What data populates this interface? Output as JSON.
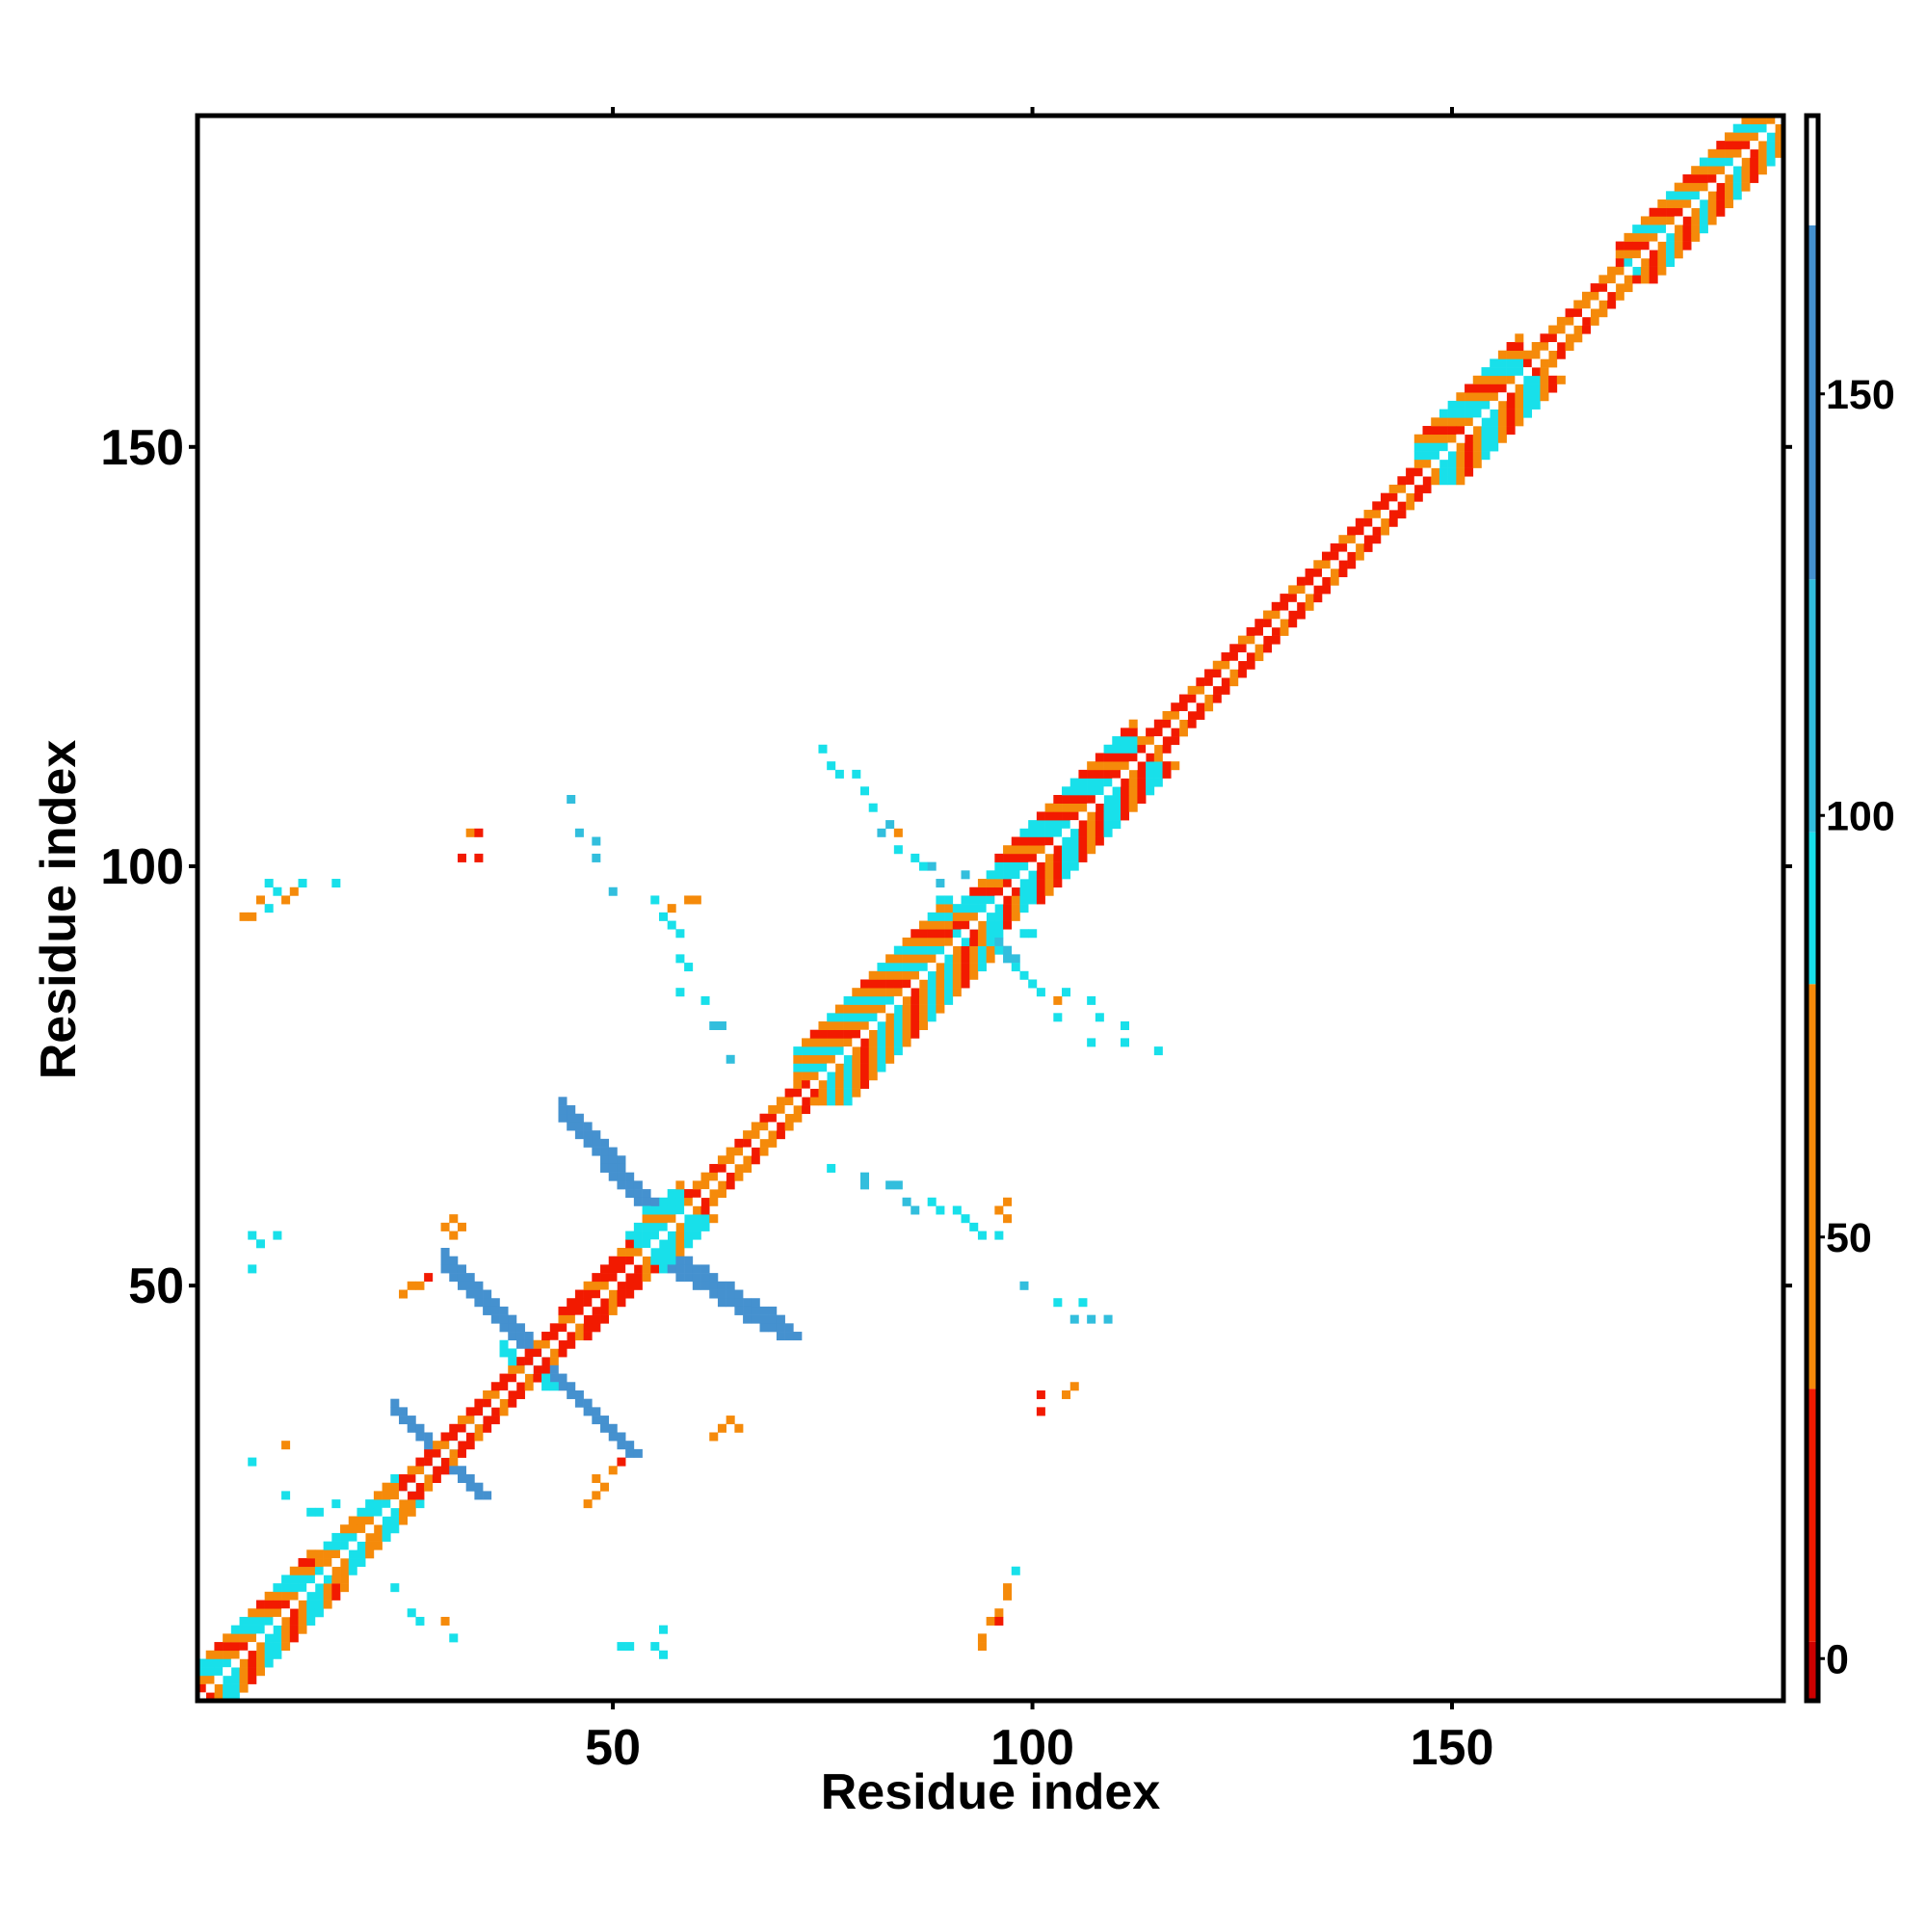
{
  "chart_data": {
    "type": "heatmap",
    "title": "",
    "xlabel": "Residue index",
    "ylabel": "Residue index",
    "xlim": [
      1,
      189
    ],
    "ylim": [
      1,
      189
    ],
    "x_ticks": [
      50,
      100,
      150
    ],
    "y_ticks": [
      50,
      100,
      150
    ],
    "colorbar": {
      "ticks": [
        0,
        50,
        100,
        150
      ],
      "range": [
        -5,
        183
      ],
      "bands": [
        {
          "from": -5,
          "to": 2,
          "color": "#cc0000"
        },
        {
          "from": 2,
          "to": 32,
          "color": "#f21a00"
        },
        {
          "from": 32,
          "to": 80,
          "color": "#f58a0a"
        },
        {
          "from": 80,
          "to": 98,
          "color": "#18e0ea"
        },
        {
          "from": 98,
          "to": 128,
          "color": "#32bedd"
        },
        {
          "from": 128,
          "to": 170,
          "color": "#4591cf"
        },
        {
          "from": 170,
          "to": 183,
          "color": "#ffffff"
        }
      ]
    },
    "colors": {
      "red": "#f21a00",
      "orange": "#f58a0a",
      "cyan": "#18e0ea",
      "lightblue": "#32bedd",
      "steelblue": "#4591cf"
    },
    "diagonal_band": [
      {
        "from": 1,
        "to": 14,
        "halfwidth": 4,
        "pattern": [
          "cyan",
          "orange",
          "red",
          "orange",
          "cyan"
        ]
      },
      {
        "from": 14,
        "to": 24,
        "halfwidth": 3,
        "pattern": [
          "cyan",
          "orange",
          "orange",
          "cyan"
        ]
      },
      {
        "from": 24,
        "to": 44,
        "halfwidth": 2,
        "pattern": [
          "red",
          "orange",
          "red"
        ]
      },
      {
        "from": 44,
        "to": 52,
        "halfwidth": 3,
        "pattern": [
          "red",
          "red",
          "orange",
          "red"
        ]
      },
      {
        "from": 52,
        "to": 58,
        "halfwidth": 4,
        "pattern": [
          "cyan",
          "cyan",
          "orange",
          "cyan"
        ]
      },
      {
        "from": 58,
        "to": 72,
        "halfwidth": 2,
        "pattern": [
          "orange",
          "red",
          "orange"
        ]
      },
      {
        "from": 72,
        "to": 90,
        "halfwidth": 6,
        "pattern": [
          "cyan",
          "orange",
          "red",
          "orange",
          "cyan",
          "orange"
        ]
      },
      {
        "from": 90,
        "to": 96,
        "halfwidth": 4,
        "pattern": [
          "cyan",
          "red",
          "orange",
          "cyan"
        ]
      },
      {
        "from": 96,
        "to": 112,
        "halfwidth": 5,
        "pattern": [
          "cyan",
          "red",
          "orange",
          "red",
          "cyan"
        ]
      },
      {
        "from": 112,
        "to": 146,
        "halfwidth": 2,
        "pattern": [
          "red",
          "orange",
          "red"
        ]
      },
      {
        "from": 146,
        "to": 158,
        "halfwidth": 5,
        "pattern": [
          "cyan",
          "orange",
          "red",
          "orange",
          "cyan"
        ]
      },
      {
        "from": 158,
        "to": 170,
        "halfwidth": 2,
        "pattern": [
          "orange",
          "red",
          "orange"
        ]
      },
      {
        "from": 170,
        "to": 189,
        "halfwidth": 4,
        "pattern": [
          "cyan",
          "orange",
          "red",
          "orange"
        ]
      }
    ],
    "strands": [
      {
        "x": [
          24,
          34
        ],
        "y": [
          35,
          25
        ],
        "width": 2,
        "color": "steelblue"
      },
      {
        "x": [
          24,
          34
        ],
        "y": [
          25,
          35
        ],
        "width": 2,
        "color": "steelblue"
      },
      {
        "x": [
          30,
          40
        ],
        "y": [
          52,
          42
        ],
        "width": 3,
        "color": "steelblue"
      },
      {
        "x": [
          40,
          52
        ],
        "y": [
          42,
          30
        ],
        "width": 2,
        "color": "steelblue"
      },
      {
        "x": [
          44,
          53
        ],
        "y": [
          70,
          60
        ],
        "width": 3,
        "color": "steelblue"
      },
      {
        "x": [
          57,
          70
        ],
        "y": [
          52,
          44
        ],
        "width": 3,
        "color": "steelblue"
      },
      {
        "x": [
          53,
          57
        ],
        "y": [
          60,
          52
        ],
        "width": 3,
        "color": "cyan"
      },
      {
        "x": [
          37,
          42
        ],
        "y": [
          42,
          38
        ],
        "width": 2,
        "color": "cyan"
      },
      {
        "x": [
          90,
          97
        ],
        "y": [
          95,
          89
        ],
        "width": 2,
        "color": "lightblue"
      }
    ],
    "contacts": [
      {
        "x": 6,
        "y": 94,
        "c": "orange"
      },
      {
        "x": 7,
        "y": 94,
        "c": "orange"
      },
      {
        "x": 8,
        "y": 96,
        "c": "orange"
      },
      {
        "x": 9,
        "y": 95,
        "c": "cyan"
      },
      {
        "x": 10,
        "y": 97,
        "c": "cyan"
      },
      {
        "x": 11,
        "y": 96,
        "c": "orange"
      },
      {
        "x": 12,
        "y": 97,
        "c": "orange"
      },
      {
        "x": 13,
        "y": 98,
        "c": "cyan"
      },
      {
        "x": 9,
        "y": 98,
        "c": "cyan"
      },
      {
        "x": 17,
        "y": 98,
        "c": "cyan"
      },
      {
        "x": 33,
        "y": 104,
        "c": "orange"
      },
      {
        "x": 34,
        "y": 104,
        "c": "red"
      },
      {
        "x": 32,
        "y": 101,
        "c": "red"
      },
      {
        "x": 34,
        "y": 101,
        "c": "red"
      },
      {
        "x": 45,
        "y": 108,
        "c": "lightblue"
      },
      {
        "x": 46,
        "y": 104,
        "c": "lightblue"
      },
      {
        "x": 48,
        "y": 103,
        "c": "lightblue"
      },
      {
        "x": 48,
        "y": 101,
        "c": "lightblue"
      },
      {
        "x": 50,
        "y": 97,
        "c": "lightblue"
      },
      {
        "x": 55,
        "y": 96,
        "c": "cyan"
      },
      {
        "x": 56,
        "y": 94,
        "c": "cyan"
      },
      {
        "x": 57,
        "y": 93,
        "c": "cyan"
      },
      {
        "x": 58,
        "y": 92,
        "c": "cyan"
      },
      {
        "x": 59,
        "y": 96,
        "c": "orange"
      },
      {
        "x": 60,
        "y": 96,
        "c": "orange"
      },
      {
        "x": 57,
        "y": 95,
        "c": "orange"
      },
      {
        "x": 58,
        "y": 89,
        "c": "cyan"
      },
      {
        "x": 59,
        "y": 88,
        "c": "cyan"
      },
      {
        "x": 58,
        "y": 85,
        "c": "cyan"
      },
      {
        "x": 61,
        "y": 84,
        "c": "cyan"
      },
      {
        "x": 62,
        "y": 81,
        "c": "lightblue"
      },
      {
        "x": 63,
        "y": 81,
        "c": "lightblue"
      },
      {
        "x": 64,
        "y": 77,
        "c": "lightblue"
      },
      {
        "x": 75,
        "y": 114,
        "c": "cyan"
      },
      {
        "x": 76,
        "y": 112,
        "c": "cyan"
      },
      {
        "x": 77,
        "y": 111,
        "c": "cyan"
      },
      {
        "x": 79,
        "y": 111,
        "c": "cyan"
      },
      {
        "x": 80,
        "y": 109,
        "c": "cyan"
      },
      {
        "x": 81,
        "y": 107,
        "c": "cyan"
      },
      {
        "x": 82,
        "y": 104,
        "c": "lightblue"
      },
      {
        "x": 83,
        "y": 105,
        "c": "lightblue"
      },
      {
        "x": 84,
        "y": 104,
        "c": "orange"
      },
      {
        "x": 84,
        "y": 102,
        "c": "cyan"
      },
      {
        "x": 86,
        "y": 101,
        "c": "cyan"
      },
      {
        "x": 87,
        "y": 100,
        "c": "cyan"
      },
      {
        "x": 88,
        "y": 100,
        "c": "lightblue"
      },
      {
        "x": 89,
        "y": 98,
        "c": "lightblue"
      },
      {
        "x": 89,
        "y": 96,
        "c": "cyan"
      },
      {
        "x": 92,
        "y": 99,
        "c": "lightblue"
      },
      {
        "x": 90,
        "y": 96,
        "c": "cyan"
      },
      {
        "x": 92,
        "y": 96,
        "c": "cyan"
      },
      {
        "x": 99,
        "y": 92,
        "c": "cyan"
      },
      {
        "x": 100,
        "y": 92,
        "c": "cyan"
      },
      {
        "x": 95,
        "y": 89,
        "c": "lightblue"
      },
      {
        "x": 98,
        "y": 88,
        "c": "cyan"
      },
      {
        "x": 99,
        "y": 87,
        "c": "cyan"
      },
      {
        "x": 100,
        "y": 86,
        "c": "cyan"
      },
      {
        "x": 101,
        "y": 85,
        "c": "cyan"
      },
      {
        "x": 103,
        "y": 84,
        "c": "orange"
      },
      {
        "x": 104,
        "y": 85,
        "c": "cyan"
      },
      {
        "x": 103,
        "y": 82,
        "c": "cyan"
      },
      {
        "x": 107,
        "y": 84,
        "c": "cyan"
      },
      {
        "x": 108,
        "y": 82,
        "c": "cyan"
      },
      {
        "x": 111,
        "y": 81,
        "c": "cyan"
      },
      {
        "x": 107,
        "y": 79,
        "c": "cyan"
      },
      {
        "x": 111,
        "y": 79,
        "c": "cyan"
      },
      {
        "x": 115,
        "y": 78,
        "c": "cyan"
      },
      {
        "x": 76,
        "y": 64,
        "c": "cyan"
      },
      {
        "x": 80,
        "y": 63,
        "c": "lightblue"
      },
      {
        "x": 80,
        "y": 62,
        "c": "lightblue"
      },
      {
        "x": 83,
        "y": 62,
        "c": "lightblue"
      },
      {
        "x": 84,
        "y": 62,
        "c": "lightblue"
      },
      {
        "x": 85,
        "y": 60,
        "c": "lightblue"
      },
      {
        "x": 86,
        "y": 59,
        "c": "lightblue"
      },
      {
        "x": 88,
        "y": 60,
        "c": "cyan"
      },
      {
        "x": 89,
        "y": 59,
        "c": "cyan"
      },
      {
        "x": 91,
        "y": 59,
        "c": "cyan"
      },
      {
        "x": 92,
        "y": 58,
        "c": "cyan"
      },
      {
        "x": 93,
        "y": 57,
        "c": "cyan"
      },
      {
        "x": 94,
        "y": 56,
        "c": "cyan"
      },
      {
        "x": 96,
        "y": 56,
        "c": "cyan"
      },
      {
        "x": 96,
        "y": 59,
        "c": "orange"
      },
      {
        "x": 97,
        "y": 60,
        "c": "orange"
      },
      {
        "x": 97,
        "y": 58,
        "c": "orange"
      },
      {
        "x": 99,
        "y": 50,
        "c": "lightblue"
      },
      {
        "x": 103,
        "y": 48,
        "c": "cyan"
      },
      {
        "x": 106,
        "y": 48,
        "c": "cyan"
      },
      {
        "x": 105,
        "y": 46,
        "c": "lightblue"
      },
      {
        "x": 107,
        "y": 46,
        "c": "lightblue"
      },
      {
        "x": 109,
        "y": 46,
        "c": "lightblue"
      },
      {
        "x": 101,
        "y": 37,
        "c": "red"
      },
      {
        "x": 101,
        "y": 35,
        "c": "red"
      },
      {
        "x": 104,
        "y": 37,
        "c": "orange"
      },
      {
        "x": 105,
        "y": 38,
        "c": "orange"
      },
      {
        "x": 94,
        "y": 8,
        "c": "orange"
      },
      {
        "x": 94,
        "y": 7,
        "c": "orange"
      },
      {
        "x": 95,
        "y": 10,
        "c": "orange"
      },
      {
        "x": 96,
        "y": 11,
        "c": "orange"
      },
      {
        "x": 97,
        "y": 13,
        "c": "orange"
      },
      {
        "x": 96,
        "y": 10,
        "c": "red"
      },
      {
        "x": 98,
        "y": 16,
        "c": "cyan"
      },
      {
        "x": 97,
        "y": 14,
        "c": "orange"
      },
      {
        "x": 63,
        "y": 33,
        "c": "orange"
      },
      {
        "x": 64,
        "y": 34,
        "c": "orange"
      },
      {
        "x": 65,
        "y": 33,
        "c": "orange"
      },
      {
        "x": 62,
        "y": 32,
        "c": "orange"
      },
      {
        "x": 48,
        "y": 27,
        "c": "orange"
      },
      {
        "x": 49,
        "y": 26,
        "c": "orange"
      },
      {
        "x": 50,
        "y": 28,
        "c": "orange"
      },
      {
        "x": 47,
        "y": 24,
        "c": "orange"
      },
      {
        "x": 48,
        "y": 25,
        "c": "orange"
      },
      {
        "x": 51,
        "y": 29,
        "c": "red"
      },
      {
        "x": 31,
        "y": 58,
        "c": "orange"
      },
      {
        "x": 32,
        "y": 57,
        "c": "orange"
      },
      {
        "x": 30,
        "y": 57,
        "c": "orange"
      },
      {
        "x": 31,
        "y": 56,
        "c": "orange"
      },
      {
        "x": 25,
        "y": 49,
        "c": "orange"
      },
      {
        "x": 26,
        "y": 50,
        "c": "orange"
      },
      {
        "x": 28,
        "y": 51,
        "c": "red"
      },
      {
        "x": 27,
        "y": 50,
        "c": "orange"
      },
      {
        "x": 7,
        "y": 56,
        "c": "cyan"
      },
      {
        "x": 8,
        "y": 55,
        "c": "cyan"
      },
      {
        "x": 10,
        "y": 56,
        "c": "cyan"
      },
      {
        "x": 7,
        "y": 52,
        "c": "cyan"
      },
      {
        "x": 7,
        "y": 29,
        "c": "cyan"
      },
      {
        "x": 11,
        "y": 31,
        "c": "orange"
      },
      {
        "x": 11,
        "y": 25,
        "c": "cyan"
      },
      {
        "x": 14,
        "y": 23,
        "c": "cyan"
      },
      {
        "x": 15,
        "y": 23,
        "c": "cyan"
      },
      {
        "x": 17,
        "y": 24,
        "c": "cyan"
      },
      {
        "x": 24,
        "y": 14,
        "c": "cyan"
      },
      {
        "x": 26,
        "y": 11,
        "c": "cyan"
      },
      {
        "x": 30,
        "y": 10,
        "c": "orange"
      },
      {
        "x": 31,
        "y": 8,
        "c": "cyan"
      },
      {
        "x": 27,
        "y": 10,
        "c": "cyan"
      },
      {
        "x": 51,
        "y": 7,
        "c": "cyan"
      },
      {
        "x": 52,
        "y": 7,
        "c": "cyan"
      },
      {
        "x": 55,
        "y": 7,
        "c": "cyan"
      },
      {
        "x": 56,
        "y": 9,
        "c": "cyan"
      },
      {
        "x": 56,
        "y": 6,
        "c": "cyan"
      }
    ]
  }
}
